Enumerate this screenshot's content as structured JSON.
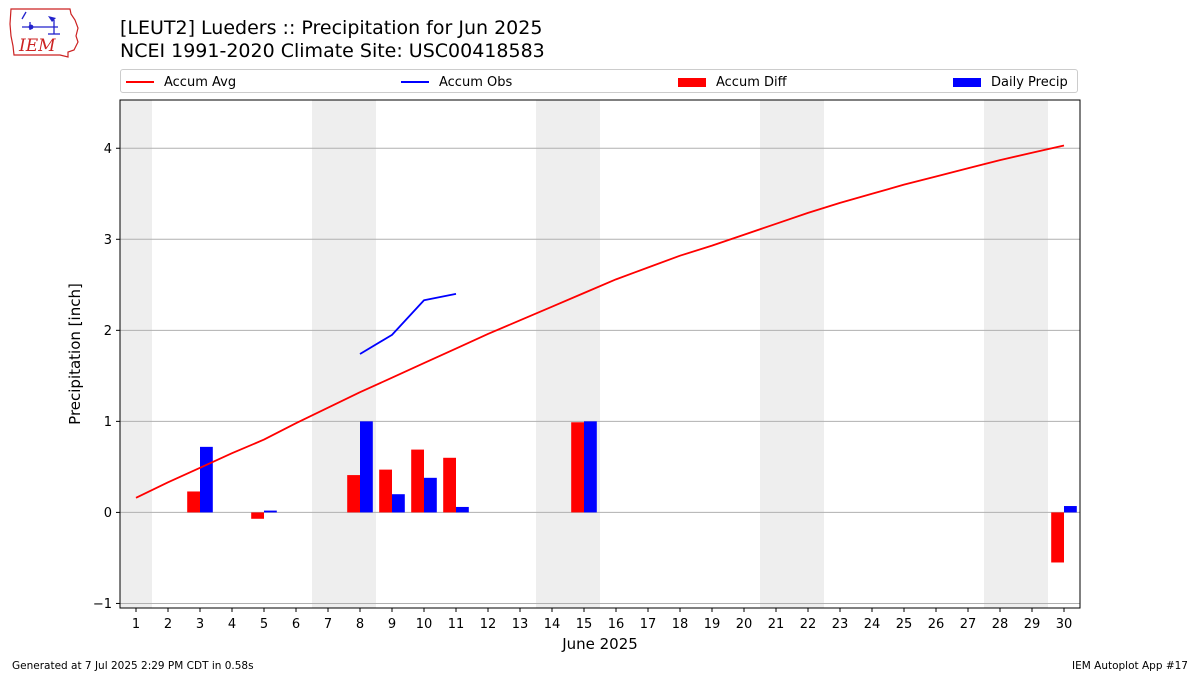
{
  "logo": {
    "text": "IEM"
  },
  "title": {
    "line1": "[LEUT2] Lueders :: Precipitation for Jun 2025",
    "line2": "NCEI 1991-2020 Climate Site: USC00418583"
  },
  "legend": [
    {
      "label": "Accum Avg",
      "kind": "line",
      "color": "#ff0000"
    },
    {
      "label": "Accum Obs",
      "kind": "line",
      "color": "#0000ff"
    },
    {
      "label": "Accum Diff",
      "kind": "box",
      "color": "#ff0000"
    },
    {
      "label": "Daily Precip",
      "kind": "box",
      "color": "#0000ff"
    }
  ],
  "footer": {
    "left": "Generated at 7 Jul 2025 2:29 PM CDT in 0.58s",
    "right": "IEM Autoplot App #17"
  },
  "chart_data": {
    "type": "bar",
    "xlabel": "June 2025",
    "ylabel": "Precipitation [inch]",
    "xlim": [
      0.5,
      30.5
    ],
    "ylim": [
      -1.05,
      4.53
    ],
    "x_ticks": [
      1,
      2,
      3,
      4,
      5,
      6,
      7,
      8,
      9,
      10,
      11,
      12,
      13,
      14,
      15,
      16,
      17,
      18,
      19,
      20,
      21,
      22,
      23,
      24,
      25,
      26,
      27,
      28,
      29,
      30
    ],
    "y_ticks": [
      -1,
      0,
      1,
      2,
      3,
      4
    ],
    "grid": "horizontal",
    "legend_position": "top",
    "weekend_shading": [
      [
        0.5,
        1.5
      ],
      [
        6.5,
        8.5
      ],
      [
        13.5,
        15.5
      ],
      [
        20.5,
        22.5
      ],
      [
        27.5,
        29.5
      ]
    ],
    "shading_color": "#eeeeee",
    "series": [
      {
        "name": "Accum Avg",
        "type": "line",
        "color": "#ff0000",
        "x": [
          1,
          2,
          3,
          4,
          5,
          6,
          7,
          8,
          9,
          10,
          11,
          12,
          13,
          14,
          15,
          16,
          17,
          18,
          19,
          20,
          21,
          22,
          23,
          24,
          25,
          26,
          27,
          28,
          29,
          30
        ],
        "values": [
          0.16,
          0.33,
          0.49,
          0.65,
          0.8,
          0.98,
          1.15,
          1.32,
          1.48,
          1.64,
          1.8,
          1.96,
          2.11,
          2.26,
          2.41,
          2.56,
          2.69,
          2.82,
          2.93,
          3.05,
          3.17,
          3.29,
          3.4,
          3.5,
          3.6,
          3.69,
          3.78,
          3.87,
          3.95,
          4.03
        ]
      },
      {
        "name": "Accum Obs",
        "type": "line",
        "color": "#0000ff",
        "x": [
          8,
          9,
          10,
          11
        ],
        "values": [
          1.74,
          1.95,
          2.33,
          2.4
        ]
      },
      {
        "name": "Accum Diff",
        "type": "bar",
        "color": "#ff0000",
        "x": [
          3,
          5,
          8,
          9,
          10,
          11,
          15,
          30
        ],
        "values": [
          0.23,
          -0.07,
          0.41,
          0.47,
          0.69,
          0.6,
          0.99,
          -0.55
        ]
      },
      {
        "name": "Daily Precip",
        "type": "bar",
        "color": "#0000ff",
        "x": [
          3,
          5,
          8,
          9,
          10,
          11,
          15,
          30
        ],
        "values": [
          0.72,
          0.02,
          1.0,
          0.2,
          0.38,
          0.06,
          1.0,
          0.07
        ]
      }
    ]
  }
}
